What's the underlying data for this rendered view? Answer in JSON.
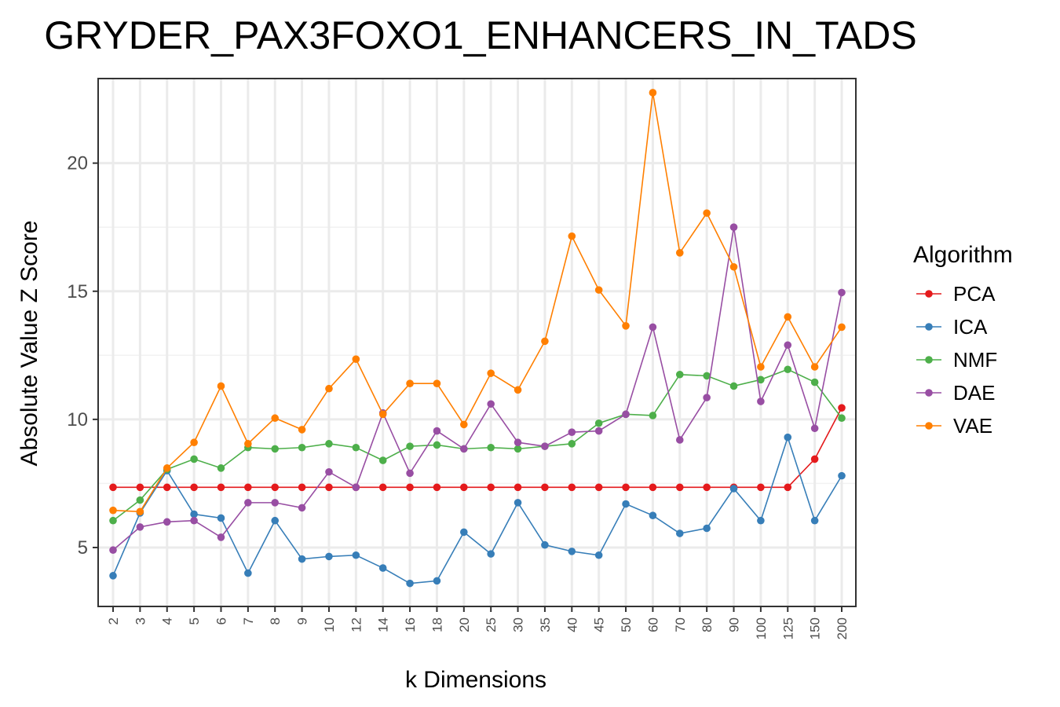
{
  "chart_data": {
    "type": "line",
    "title": "GRYDER_PAX3FOXO1_ENHANCERS_IN_TADS",
    "xlabel": "k Dimensions",
    "ylabel": "Absolute Value Z Score",
    "categories": [
      "2",
      "3",
      "4",
      "5",
      "6",
      "7",
      "8",
      "9",
      "10",
      "12",
      "14",
      "16",
      "18",
      "20",
      "25",
      "30",
      "35",
      "40",
      "45",
      "50",
      "60",
      "70",
      "80",
      "90",
      "100",
      "125",
      "150",
      "200"
    ],
    "yticks": [
      5,
      10,
      15,
      20
    ],
    "ylim": [
      2.7,
      23.3
    ],
    "grid": true,
    "legend": {
      "title": "Algorithm",
      "position": "right"
    },
    "series": [
      {
        "name": "PCA",
        "color": "#e41a1c",
        "values": [
          7.35,
          7.35,
          7.35,
          7.35,
          7.35,
          7.35,
          7.35,
          7.35,
          7.35,
          7.35,
          7.35,
          7.35,
          7.35,
          7.35,
          7.35,
          7.35,
          7.35,
          7.35,
          7.35,
          7.35,
          7.35,
          7.35,
          7.35,
          7.35,
          7.35,
          7.35,
          8.45,
          10.45
        ]
      },
      {
        "name": "ICA",
        "color": "#377eb8",
        "values": [
          3.9,
          6.35,
          8.0,
          6.3,
          6.15,
          4.0,
          6.05,
          4.55,
          4.65,
          4.7,
          4.2,
          3.6,
          3.7,
          5.6,
          4.75,
          6.75,
          5.1,
          4.85,
          4.7,
          6.7,
          6.25,
          5.55,
          5.75,
          7.3,
          6.05,
          9.3,
          6.05,
          7.8
        ]
      },
      {
        "name": "NMF",
        "color": "#4daf4a",
        "values": [
          6.05,
          6.85,
          8.05,
          8.45,
          8.1,
          8.9,
          8.85,
          8.9,
          9.05,
          8.9,
          8.4,
          8.95,
          9.0,
          8.85,
          8.9,
          8.85,
          8.95,
          9.05,
          9.85,
          10.2,
          10.15,
          11.75,
          11.7,
          11.3,
          11.55,
          11.95,
          11.45,
          10.05
        ]
      },
      {
        "name": "DAE",
        "color": "#984ea3",
        "values": [
          4.9,
          5.8,
          6.0,
          6.05,
          5.4,
          6.75,
          6.75,
          6.55,
          7.95,
          7.35,
          10.25,
          7.9,
          9.55,
          8.85,
          10.6,
          9.1,
          8.95,
          9.5,
          9.55,
          10.2,
          13.6,
          9.2,
          10.85,
          17.5,
          10.7,
          12.9,
          9.65,
          14.95
        ]
      },
      {
        "name": "VAE",
        "color": "#ff7f00",
        "values": [
          6.45,
          6.4,
          8.1,
          9.1,
          11.3,
          9.05,
          10.05,
          9.6,
          11.2,
          12.35,
          10.2,
          11.4,
          11.4,
          9.8,
          11.8,
          11.15,
          13.05,
          17.15,
          15.05,
          13.65,
          22.75,
          16.5,
          18.05,
          15.95,
          12.05,
          14.0,
          12.05,
          13.6
        ]
      }
    ]
  }
}
